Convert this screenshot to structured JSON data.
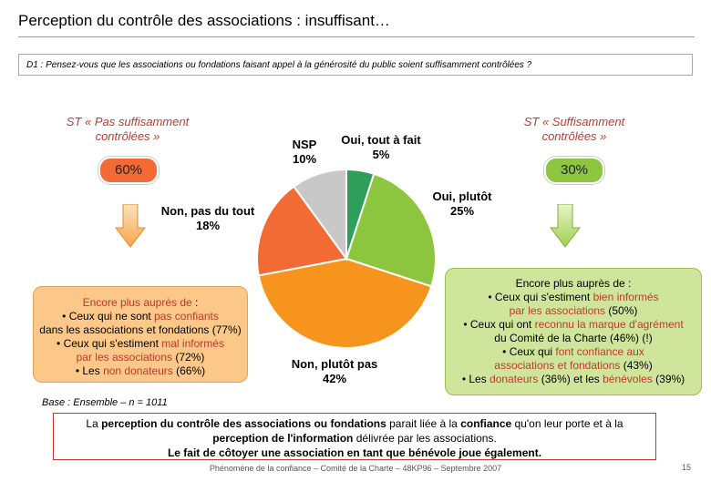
{
  "title": "Perception du contrôle des associations : insuffisant…",
  "question": "D1 : Pensez-vous que les associations ou fondations faisant appel à la générosité du public soient suffisamment contrôlées ?",
  "left_group": {
    "label_line1": "ST « Pas suffisamment",
    "label_line2": "contrôlées »",
    "pct": "60%"
  },
  "right_group": {
    "label_line1": "ST « Suffisamment",
    "label_line2": "contrôlées »",
    "pct": "30%"
  },
  "left_box": {
    "head_pre": "Encore plus auprès de ",
    "head_post": ":",
    "l1_pre": "• Ceux qui ne sont ",
    "l1_hl": "pas confiants",
    "l2": "dans les associations et fondations (77%)",
    "l3_pre": "• Ceux qui s'estiment ",
    "l3_hl": "mal informés",
    "l4_hl": "par les associations",
    "l4_post": " (72%)",
    "l5_pre": "• Les ",
    "l5_hl": "non donateurs",
    "l5_post": " (66%)"
  },
  "right_box": {
    "head": "Encore plus auprès de :",
    "l1_pre": "• Ceux qui s'estiment ",
    "l1_hl": "bien informés",
    "l2_hl": "par les associations",
    "l2_post": " (50%)",
    "l3_pre": "• Ceux qui ont ",
    "l3_hl": "reconnu la marque d'agrément",
    "l4": "du Comité de la Charte (46%) (!)",
    "l5_pre": "• Ceux qui ",
    "l5_hl": "font confiance aux",
    "l6_hl": "associations et fondations",
    "l6_post": " (43%)",
    "l7_pre": "• Les ",
    "l7_hl1": "donateurs",
    "l7_mid": " (36%) et les ",
    "l7_hl2": "bénévoles",
    "l7_post": " (39%)"
  },
  "base": "Base : Ensemble – n = 1011",
  "conclusion": {
    "p1": "La ",
    "b1": "perception du contrôle des associations ou fondations",
    "p2": " parait liée à la ",
    "b2": "confiance",
    "p3": " qu'on leur porte et à la",
    "b3": "perception de l'information",
    "p4": " délivrée par les associations.",
    "b4": "Le fait de côtoyer une association en tant que bénévole joue également."
  },
  "footer": "Phénomène de la confiance – Comité de la Charte – 48KP96 – Septembre 2007",
  "page_number": "15",
  "chart_data": {
    "type": "pie",
    "title": "",
    "slices": [
      {
        "label_line1": "Oui, tout à fait",
        "label_line2": "5%",
        "value": 5,
        "color": "#2e9e5b"
      },
      {
        "label_line1": "Oui, plutôt",
        "label_line2": "25%",
        "value": 25,
        "color": "#8cc63f"
      },
      {
        "label_line1": "Non, plutôt pas",
        "label_line2": "42%",
        "value": 42,
        "color": "#f7941d"
      },
      {
        "label_line1": "Non, pas du tout",
        "label_line2": "18%",
        "value": 18,
        "color": "#f26b35"
      },
      {
        "label_line1": "NSP",
        "label_line2": "10%",
        "value": 10,
        "color": "#c8c8c8"
      }
    ]
  }
}
